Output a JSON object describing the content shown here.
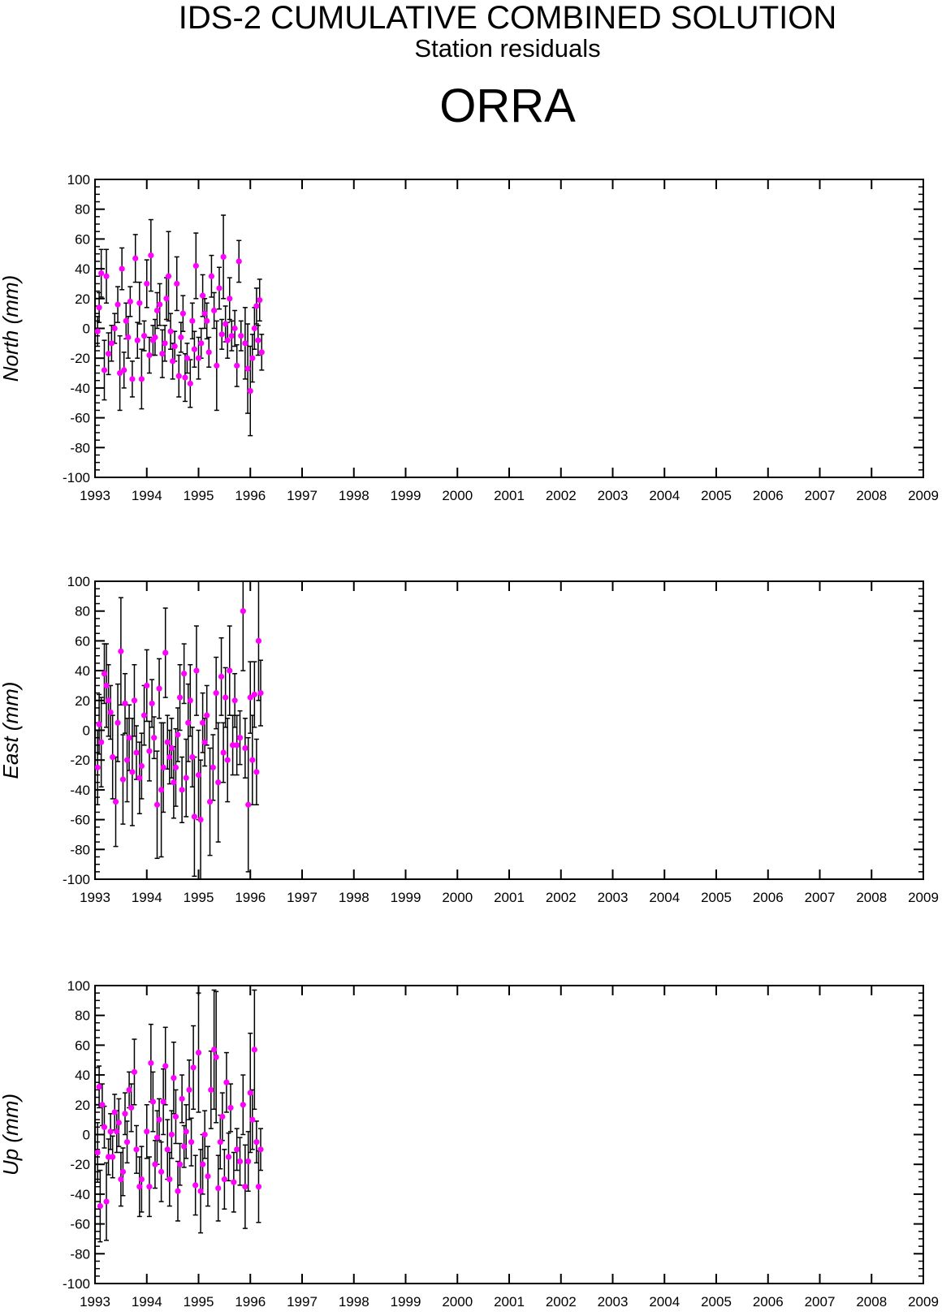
{
  "header": {
    "title": "IDS-2 CUMULATIVE COMBINED SOLUTION",
    "subtitle": "Station residuals",
    "station": "ORRA"
  },
  "colors": {
    "point": "#ff00ff",
    "errorbar": "#000000",
    "axis": "#000000"
  },
  "chart_data": [
    {
      "type": "scatter",
      "ylabel": "North (mm)",
      "xlim": [
        1993,
        2009
      ],
      "ylim": [
        -100,
        100
      ],
      "xticks": [
        "1993",
        "1994",
        "1995",
        "1996",
        "1997",
        "1998",
        "1999",
        "2000",
        "2001",
        "2002",
        "2003",
        "2004",
        "2005",
        "2006",
        "2007",
        "2008",
        "2009"
      ],
      "yticks": [
        "100",
        "80",
        "60",
        "40",
        "20",
        "0",
        "-20",
        "-40",
        "-60",
        "-80",
        "-100"
      ],
      "points": [
        [
          1993.05,
          -2,
          10
        ],
        [
          1993.08,
          14,
          10
        ],
        [
          1993.12,
          37,
          16
        ],
        [
          1993.18,
          -28,
          20
        ],
        [
          1993.22,
          35,
          18
        ],
        [
          1993.26,
          -17,
          14
        ],
        [
          1993.32,
          -10,
          12
        ],
        [
          1993.38,
          0,
          10
        ],
        [
          1993.44,
          16,
          12
        ],
        [
          1993.48,
          -30,
          25
        ],
        [
          1993.52,
          40,
          14
        ],
        [
          1993.56,
          -28,
          12
        ],
        [
          1993.6,
          5,
          12
        ],
        [
          1993.64,
          -6,
          14
        ],
        [
          1993.68,
          18,
          10
        ],
        [
          1993.72,
          -34,
          12
        ],
        [
          1993.78,
          47,
          16
        ],
        [
          1993.82,
          -8,
          12
        ],
        [
          1993.86,
          17,
          14
        ],
        [
          1993.9,
          -34,
          20
        ],
        [
          1993.95,
          -5,
          10
        ],
        [
          1994.0,
          30,
          16
        ],
        [
          1994.05,
          -18,
          12
        ],
        [
          1994.08,
          49,
          24
        ],
        [
          1994.12,
          -8,
          10
        ],
        [
          1994.16,
          -6,
          12
        ],
        [
          1994.2,
          12,
          12
        ],
        [
          1994.25,
          16,
          14
        ],
        [
          1994.3,
          -17,
          16
        ],
        [
          1994.35,
          -10,
          12
        ],
        [
          1994.38,
          20,
          14
        ],
        [
          1994.42,
          35,
          30
        ],
        [
          1994.46,
          -2,
          12
        ],
        [
          1994.5,
          -22,
          12
        ],
        [
          1994.54,
          -12,
          10
        ],
        [
          1994.58,
          30,
          18
        ],
        [
          1994.62,
          -32,
          14
        ],
        [
          1994.66,
          -6,
          10
        ],
        [
          1994.7,
          10,
          12
        ],
        [
          1994.74,
          -33,
          16
        ],
        [
          1994.78,
          -20,
          10
        ],
        [
          1994.84,
          -37,
          16
        ],
        [
          1994.88,
          5,
          12
        ],
        [
          1994.92,
          -14,
          12
        ],
        [
          1994.95,
          42,
          22
        ],
        [
          1995.0,
          -20,
          14
        ],
        [
          1995.05,
          -10,
          10
        ],
        [
          1995.08,
          22,
          14
        ],
        [
          1995.12,
          10,
          10
        ],
        [
          1995.16,
          5,
          12
        ],
        [
          1995.2,
          -16,
          10
        ],
        [
          1995.25,
          35,
          14
        ],
        [
          1995.3,
          12,
          12
        ],
        [
          1995.35,
          -25,
          30
        ],
        [
          1995.4,
          27,
          14
        ],
        [
          1995.45,
          -4,
          10
        ],
        [
          1995.48,
          48,
          28
        ],
        [
          1995.52,
          3,
          12
        ],
        [
          1995.56,
          -8,
          12
        ],
        [
          1995.6,
          20,
          14
        ],
        [
          1995.64,
          -5,
          10
        ],
        [
          1995.7,
          0,
          12
        ],
        [
          1995.74,
          -25,
          14
        ],
        [
          1995.78,
          45,
          14
        ],
        [
          1995.82,
          -5,
          10
        ],
        [
          1995.9,
          -10,
          24
        ],
        [
          1995.95,
          -27,
          30
        ],
        [
          1996.0,
          -42,
          30
        ],
        [
          1996.04,
          -20,
          16
        ],
        [
          1996.08,
          0,
          14
        ],
        [
          1996.12,
          15,
          12
        ],
        [
          1996.15,
          -8,
          10
        ],
        [
          1996.18,
          19,
          14
        ],
        [
          1996.22,
          -16,
          12
        ]
      ]
    },
    {
      "type": "scatter",
      "ylabel": "East (mm)",
      "xlim": [
        1993,
        2009
      ],
      "ylim": [
        -100,
        100
      ],
      "xticks": [
        "1993",
        "1994",
        "1995",
        "1996",
        "1997",
        "1998",
        "1999",
        "2000",
        "2001",
        "2002",
        "2003",
        "2004",
        "2005",
        "2006",
        "2007",
        "2008",
        "2009"
      ],
      "yticks": [
        "100",
        "80",
        "60",
        "40",
        "20",
        "0",
        "-20",
        "-40",
        "-60",
        "-80",
        "-100"
      ],
      "points": [
        [
          1993.05,
          -25,
          25
        ],
        [
          1993.08,
          4,
          20
        ],
        [
          1993.12,
          -8,
          30
        ],
        [
          1993.18,
          38,
          20
        ],
        [
          1993.22,
          30,
          28
        ],
        [
          1993.26,
          20,
          24
        ],
        [
          1993.3,
          12,
          18
        ],
        [
          1993.34,
          -18,
          28
        ],
        [
          1993.4,
          -48,
          30
        ],
        [
          1993.44,
          5,
          26
        ],
        [
          1993.5,
          53,
          36
        ],
        [
          1993.54,
          -33,
          30
        ],
        [
          1993.58,
          18,
          20
        ],
        [
          1993.62,
          -20,
          28
        ],
        [
          1993.66,
          -5,
          22
        ],
        [
          1993.72,
          -28,
          36
        ],
        [
          1993.76,
          20,
          24
        ],
        [
          1993.8,
          -15,
          18
        ],
        [
          1993.86,
          -32,
          24
        ],
        [
          1993.9,
          -24,
          22
        ],
        [
          1993.95,
          10,
          20
        ],
        [
          1994.0,
          30,
          24
        ],
        [
          1994.05,
          -14,
          20
        ],
        [
          1994.1,
          18,
          16
        ],
        [
          1994.14,
          -5,
          14
        ],
        [
          1994.2,
          -50,
          36
        ],
        [
          1994.24,
          28,
          20
        ],
        [
          1994.28,
          -40,
          45
        ],
        [
          1994.32,
          -25,
          30
        ],
        [
          1994.36,
          52,
          30
        ],
        [
          1994.4,
          -8,
          18
        ],
        [
          1994.44,
          -18,
          18
        ],
        [
          1994.48,
          -12,
          20
        ],
        [
          1994.52,
          -35,
          24
        ],
        [
          1994.56,
          -25,
          26
        ],
        [
          1994.6,
          -3,
          18
        ],
        [
          1994.64,
          22,
          22
        ],
        [
          1994.68,
          -40,
          22
        ],
        [
          1994.72,
          38,
          20
        ],
        [
          1994.76,
          -32,
          26
        ],
        [
          1994.8,
          5,
          26
        ],
        [
          1994.84,
          20,
          24
        ],
        [
          1994.88,
          -18,
          20
        ],
        [
          1994.92,
          -58,
          40
        ],
        [
          1994.96,
          40,
          30
        ],
        [
          1995.0,
          -30,
          30
        ],
        [
          1995.04,
          -60,
          40
        ],
        [
          1995.08,
          5,
          20
        ],
        [
          1995.12,
          -8,
          16
        ],
        [
          1995.16,
          10,
          20
        ],
        [
          1995.22,
          -48,
          36
        ],
        [
          1995.28,
          -25,
          22
        ],
        [
          1995.34,
          25,
          24
        ],
        [
          1995.38,
          -35,
          40
        ],
        [
          1995.44,
          36,
          26
        ],
        [
          1995.48,
          -15,
          20
        ],
        [
          1995.52,
          22,
          20
        ],
        [
          1995.56,
          -20,
          28
        ],
        [
          1995.6,
          40,
          30
        ],
        [
          1995.66,
          -10,
          20
        ],
        [
          1995.7,
          20,
          18
        ],
        [
          1995.74,
          -10,
          20
        ],
        [
          1995.8,
          -5,
          18
        ],
        [
          1995.86,
          80,
          40
        ],
        [
          1995.9,
          -12,
          20
        ],
        [
          1995.96,
          -50,
          45
        ],
        [
          1996.0,
          22,
          24
        ],
        [
          1996.04,
          -20,
          30
        ],
        [
          1996.08,
          24,
          22
        ],
        [
          1996.12,
          -28,
          22
        ],
        [
          1996.16,
          60,
          40
        ],
        [
          1996.2,
          25,
          22
        ]
      ]
    },
    {
      "type": "scatter",
      "ylabel": "Up (mm)",
      "xlim": [
        1993,
        2009
      ],
      "ylim": [
        -100,
        100
      ],
      "xticks": [
        "1993",
        "1994",
        "1995",
        "1996",
        "1997",
        "1998",
        "1999",
        "2000",
        "2001",
        "2002",
        "2003",
        "2004",
        "2005",
        "2006",
        "2007",
        "2008",
        "2009"
      ],
      "yticks": [
        "100",
        "80",
        "60",
        "40",
        "20",
        "0",
        "-20",
        "-40",
        "-60",
        "-80",
        "-100"
      ],
      "points": [
        [
          1993.05,
          -12,
          20
        ],
        [
          1993.08,
          32,
          14
        ],
        [
          1993.1,
          -48,
          24
        ],
        [
          1993.14,
          20,
          14
        ],
        [
          1993.18,
          5,
          14
        ],
        [
          1993.22,
          -45,
          26
        ],
        [
          1993.26,
          -15,
          12
        ],
        [
          1993.3,
          2,
          12
        ],
        [
          1993.34,
          -15,
          14
        ],
        [
          1993.38,
          15,
          12
        ],
        [
          1993.42,
          2,
          14
        ],
        [
          1993.46,
          8,
          16
        ],
        [
          1993.5,
          -30,
          18
        ],
        [
          1993.54,
          -25,
          16
        ],
        [
          1993.58,
          14,
          14
        ],
        [
          1993.62,
          -5,
          14
        ],
        [
          1993.66,
          30,
          12
        ],
        [
          1993.7,
          18,
          16
        ],
        [
          1993.76,
          42,
          22
        ],
        [
          1993.8,
          -10,
          16
        ],
        [
          1993.86,
          -35,
          20
        ],
        [
          1993.9,
          -30,
          22
        ],
        [
          1994.0,
          2,
          18
        ],
        [
          1994.05,
          -35,
          20
        ],
        [
          1994.08,
          48,
          26
        ],
        [
          1994.12,
          22,
          20
        ],
        [
          1994.16,
          -20,
          16
        ],
        [
          1994.2,
          -2,
          18
        ],
        [
          1994.24,
          10,
          14
        ],
        [
          1994.28,
          -25,
          20
        ],
        [
          1994.32,
          22,
          22
        ],
        [
          1994.36,
          46,
          26
        ],
        [
          1994.4,
          -10,
          20
        ],
        [
          1994.44,
          -30,
          18
        ],
        [
          1994.48,
          0,
          16
        ],
        [
          1994.52,
          38,
          24
        ],
        [
          1994.56,
          12,
          18
        ],
        [
          1994.6,
          -38,
          20
        ],
        [
          1994.64,
          -20,
          14
        ],
        [
          1994.68,
          24,
          16
        ],
        [
          1994.72,
          -8,
          14
        ],
        [
          1994.76,
          2,
          18
        ],
        [
          1994.82,
          30,
          20
        ],
        [
          1994.86,
          -5,
          16
        ],
        [
          1994.9,
          45,
          28
        ],
        [
          1994.94,
          -34,
          20
        ],
        [
          1995.0,
          55,
          40
        ],
        [
          1995.04,
          -38,
          28
        ],
        [
          1995.08,
          -20,
          20
        ],
        [
          1995.12,
          0,
          16
        ],
        [
          1995.18,
          -28,
          20
        ],
        [
          1995.24,
          30,
          26
        ],
        [
          1995.3,
          57,
          40
        ],
        [
          1995.34,
          52,
          44
        ],
        [
          1995.38,
          -36,
          22
        ],
        [
          1995.42,
          -5,
          18
        ],
        [
          1995.46,
          12,
          16
        ],
        [
          1995.5,
          -30,
          20
        ],
        [
          1995.54,
          35,
          20
        ],
        [
          1995.58,
          -15,
          16
        ],
        [
          1995.62,
          18,
          16
        ],
        [
          1995.68,
          -32,
          20
        ],
        [
          1995.74,
          -10,
          14
        ],
        [
          1995.8,
          -18,
          16
        ],
        [
          1995.86,
          20,
          20
        ],
        [
          1995.9,
          -35,
          28
        ],
        [
          1995.96,
          -18,
          20
        ],
        [
          1996.0,
          28,
          40
        ],
        [
          1996.04,
          10,
          20
        ],
        [
          1996.08,
          57,
          40
        ],
        [
          1996.12,
          -5,
          14
        ],
        [
          1996.16,
          -35,
          24
        ],
        [
          1996.2,
          -10,
          14
        ]
      ]
    }
  ]
}
